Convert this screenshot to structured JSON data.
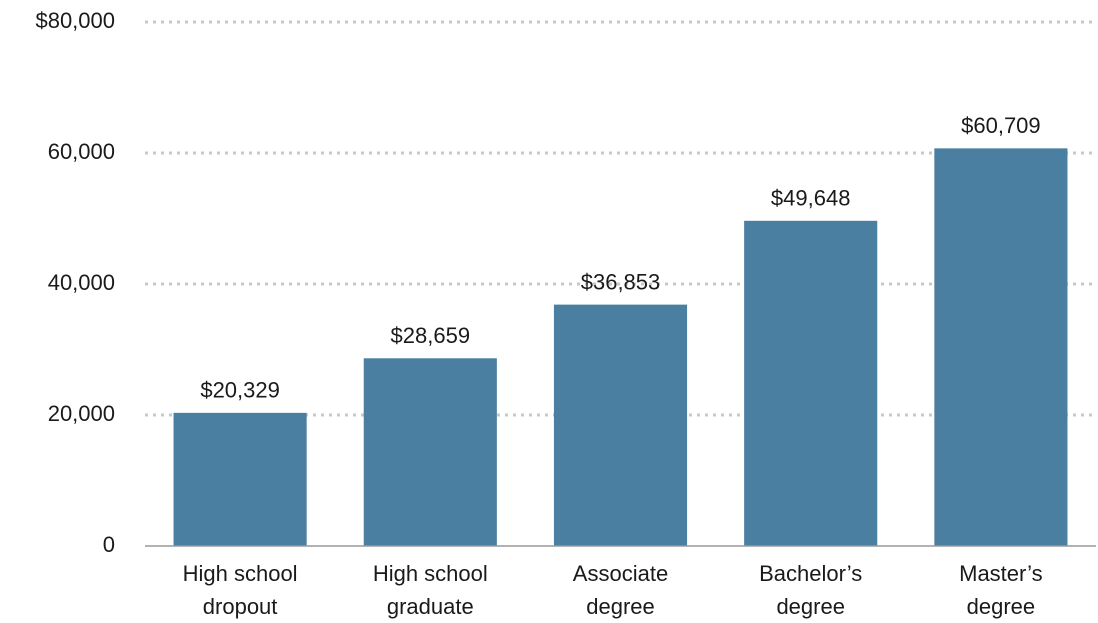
{
  "chart_data": {
    "type": "bar",
    "categories": [
      [
        "High school",
        "dropout"
      ],
      [
        "High school",
        "graduate"
      ],
      [
        "Associate",
        "degree"
      ],
      [
        "Bachelor’s",
        "degree"
      ],
      [
        "Master’s",
        "degree"
      ]
    ],
    "values": [
      20329,
      28659,
      36853,
      49648,
      60709
    ],
    "value_labels": [
      "$20,329",
      "$28,659",
      "$36,853",
      "$49,648",
      "$60,709"
    ],
    "color": "#4b7fa2",
    "ylim": [
      0,
      80000
    ],
    "yticks": [
      0,
      {
        "value": 20000,
        "label": "20,000"
      },
      {
        "value": 40000,
        "label": "40,000"
      },
      {
        "value": 60000,
        "label": "60,000"
      },
      {
        "value": 80000,
        "label": "$80,000"
      }
    ],
    "grid": true
  }
}
